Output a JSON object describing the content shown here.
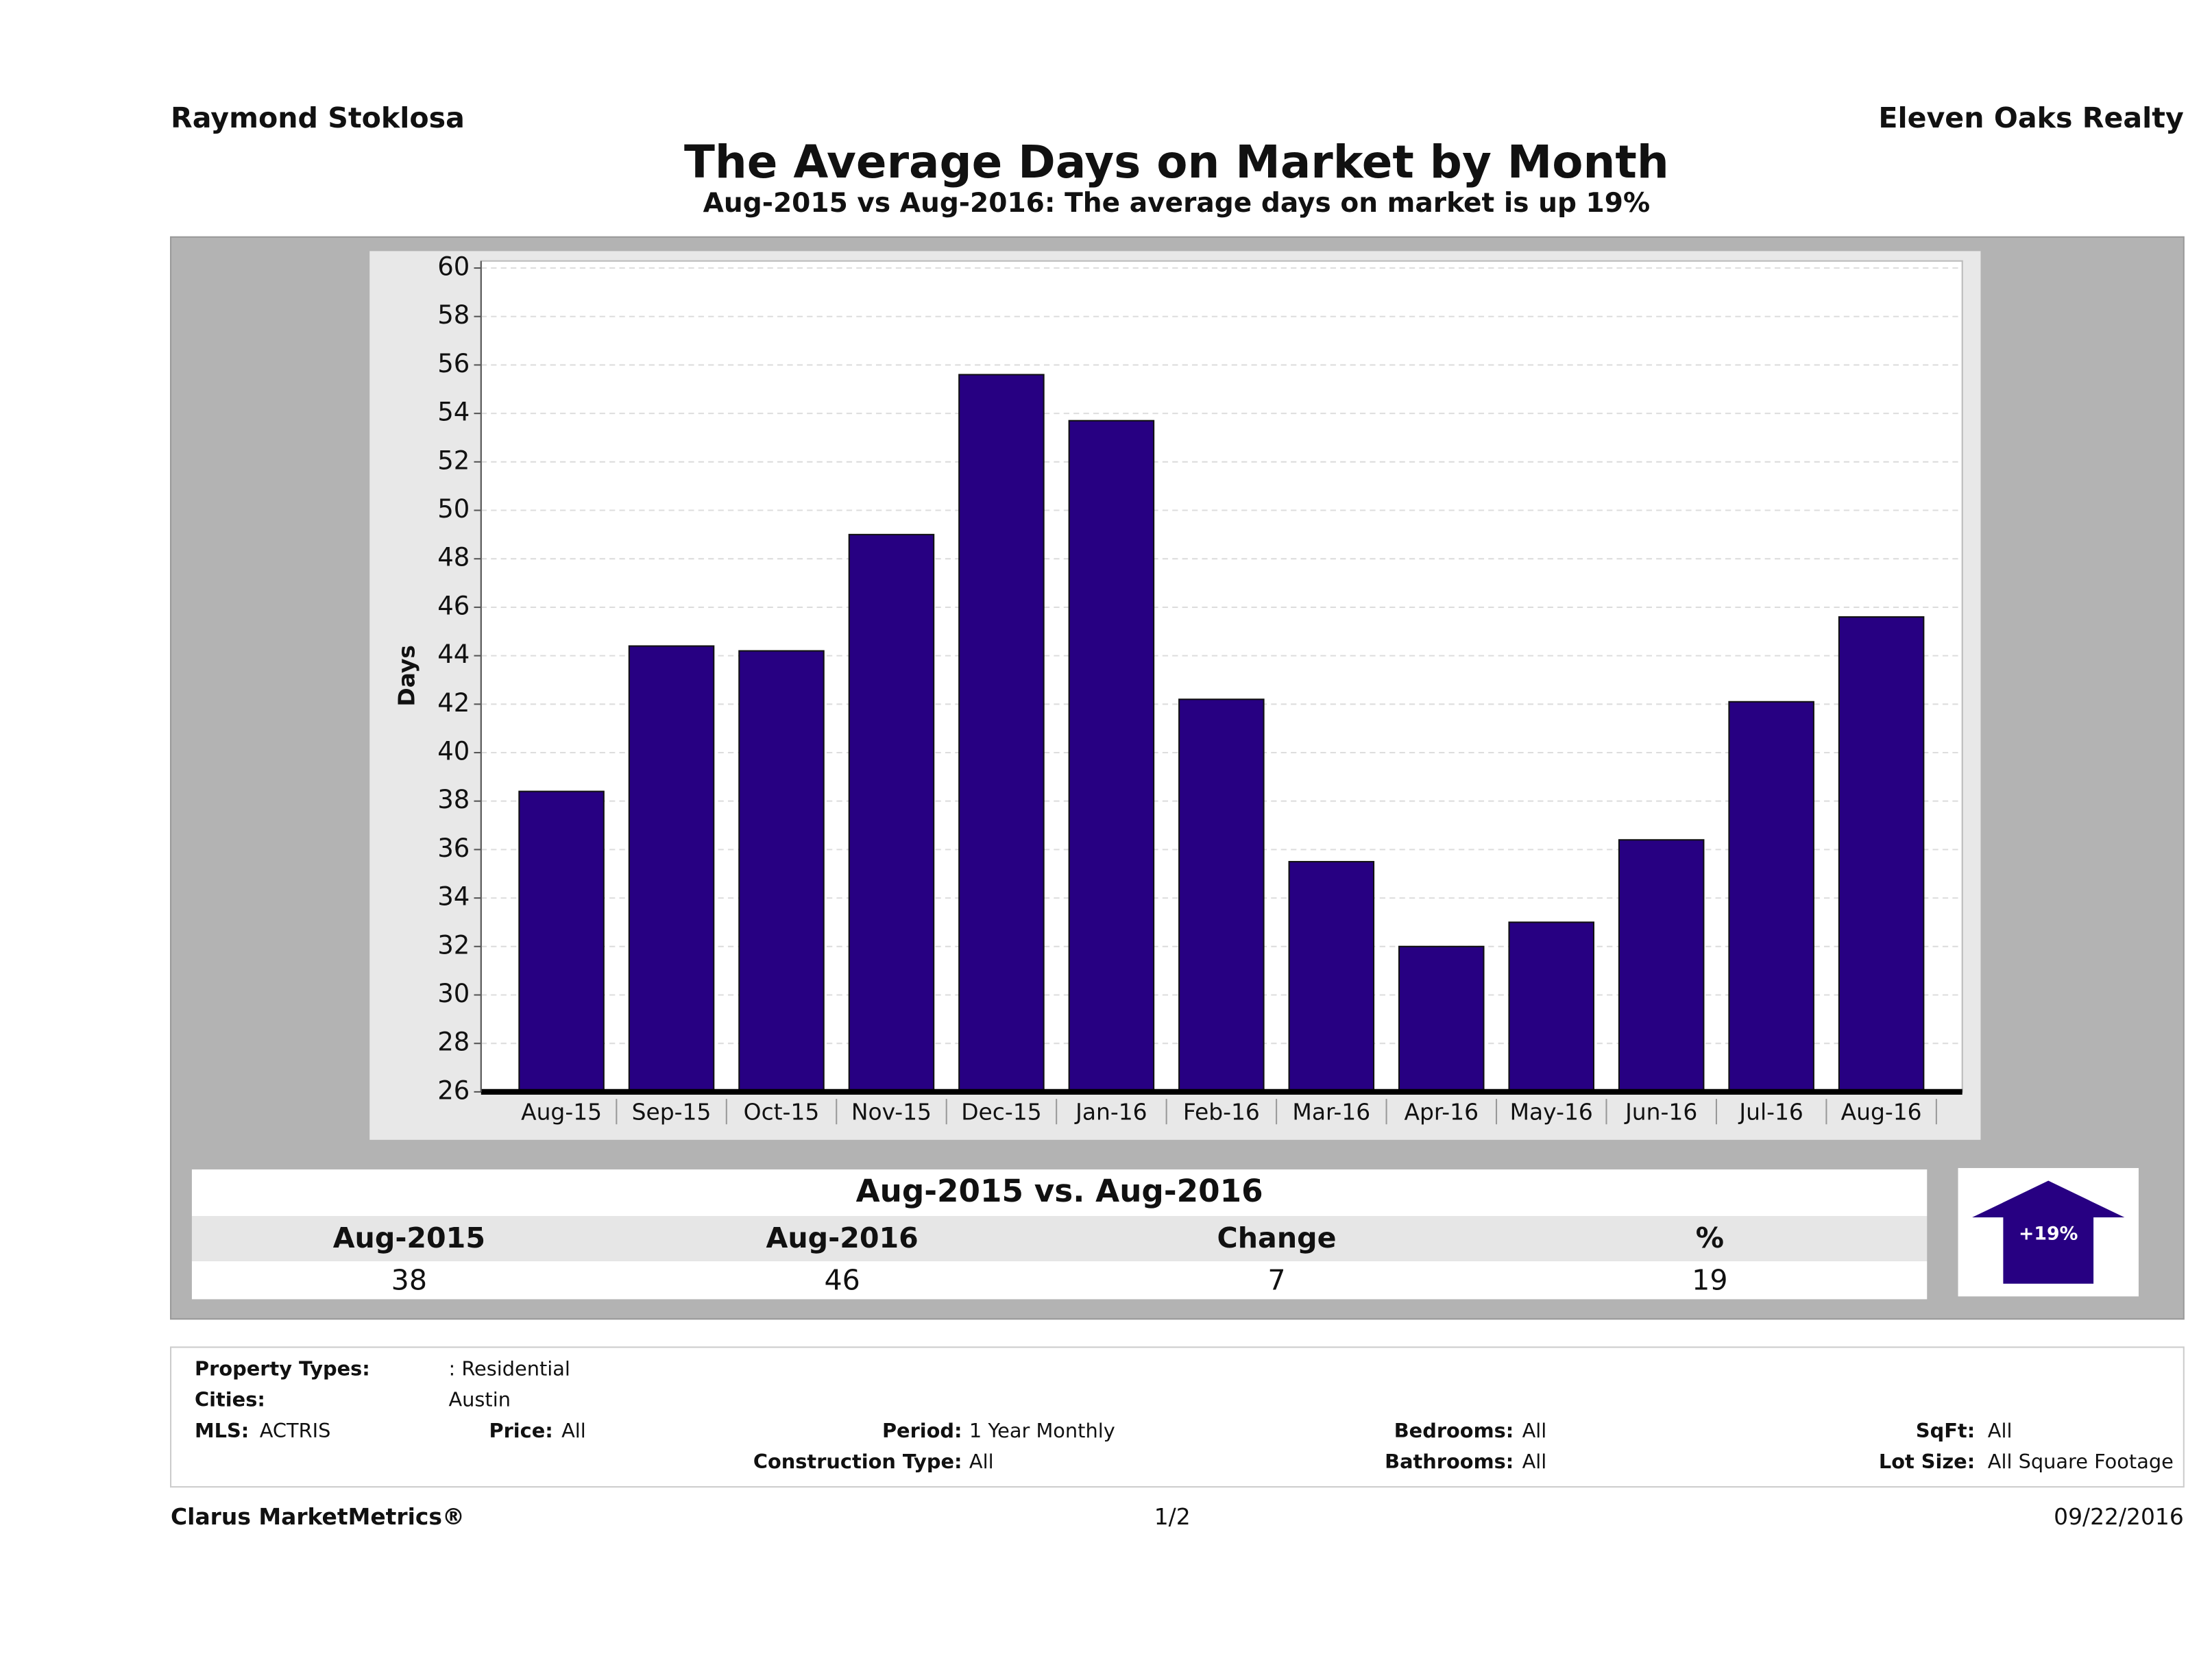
{
  "header": {
    "agent": "Raymond Stoklosa",
    "company": "Eleven Oaks Realty"
  },
  "chart_data": {
    "type": "bar",
    "title": "The Average Days on Market by Month",
    "subtitle": "Aug-2015 vs Aug-2016: The average days on market is up 19%",
    "y_label": "Days",
    "categories": [
      "Aug-15",
      "Sep-15",
      "Oct-15",
      "Nov-15",
      "Dec-15",
      "Jan-16",
      "Feb-16",
      "Mar-16",
      "Apr-16",
      "May-16",
      "Jun-16",
      "Jul-16",
      "Aug-16"
    ],
    "values": [
      38.4,
      44.4,
      44.2,
      49,
      55.6,
      53.7,
      42.2,
      35.5,
      32,
      33,
      36.4,
      42.1,
      45.6
    ],
    "color": "#270082",
    "ylim": [
      26,
      60
    ],
    "yticks": [
      26,
      28,
      30,
      32,
      34,
      36,
      38,
      40,
      42,
      44,
      46,
      48,
      50,
      52,
      54,
      56,
      58,
      60
    ],
    "grid": true
  },
  "comparison": {
    "title": "Aug-2015 vs. Aug-2016",
    "headers": [
      "Aug-2015",
      "Aug-2016",
      "Change",
      "%"
    ],
    "values": [
      38,
      46,
      7,
      19
    ],
    "badge": "+19%"
  },
  "filters": [
    {
      "label": "Property Types:",
      "value": ": Residential"
    },
    {
      "label": "Cities:",
      "value": "Austin"
    },
    {
      "label": "MLS:",
      "value": "ACTRIS"
    },
    {
      "label": "Price:",
      "value": "All"
    },
    {
      "label": "Period:",
      "value": "1 Year Monthly"
    },
    {
      "label": "Construction Type:",
      "value": "All"
    },
    {
      "label": "Bedrooms:",
      "value": "All"
    },
    {
      "label": "Bathrooms:",
      "value": "All"
    },
    {
      "label": "SqFt:",
      "value": "All"
    },
    {
      "label": "Lot Size:",
      "value": "All Square Footage"
    }
  ],
  "footer": {
    "brand": "Clarus MarketMetrics®",
    "page": "1/2",
    "date": "09/22/2016"
  }
}
